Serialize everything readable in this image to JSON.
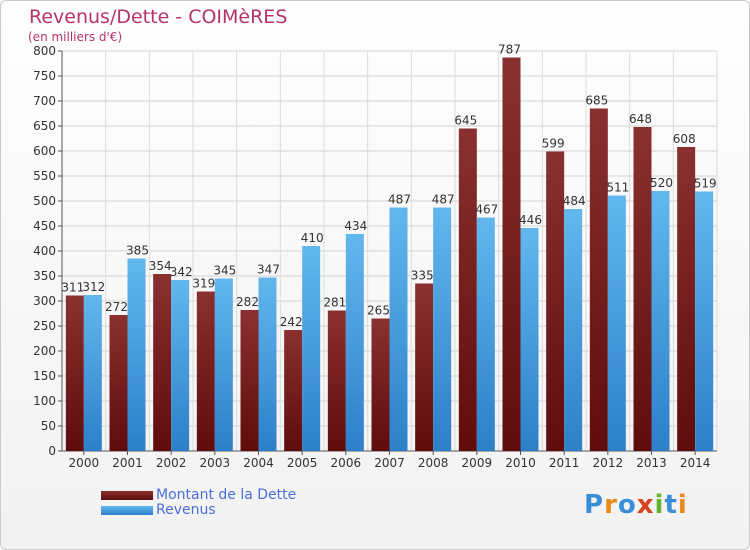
{
  "page": {
    "title": "Revenus/Dette - COIMèRES",
    "subtitle": "(en milliers d'€)",
    "logo": "Proxiti"
  },
  "colors": {
    "dette_dark": "#5e0c0c",
    "dette_light": "#8a3030",
    "revenus_dark": "#2d7fc8",
    "revenus_light": "#62b7ee",
    "title": "#b5336a",
    "grid": "#d0d0d0"
  },
  "chart_data": {
    "type": "bar",
    "categories": [
      "2000",
      "2001",
      "2002",
      "2003",
      "2004",
      "2005",
      "2006",
      "2007",
      "2008",
      "2009",
      "2010",
      "2011",
      "2012",
      "2013",
      "2014"
    ],
    "series": [
      {
        "name": "Montant de la Dette",
        "values": [
          311,
          272,
          354,
          319,
          282,
          242,
          281,
          265,
          335,
          645,
          787,
          599,
          685,
          648,
          608
        ]
      },
      {
        "name": "Revenus",
        "values": [
          312,
          385,
          342,
          345,
          347,
          410,
          434,
          487,
          487,
          467,
          446,
          484,
          511,
          520,
          519
        ]
      }
    ],
    "ylim": [
      0,
      800
    ],
    "yticks": [
      0,
      50,
      100,
      150,
      200,
      250,
      300,
      350,
      400,
      450,
      500,
      550,
      600,
      650,
      700,
      750,
      800
    ],
    "grid": true,
    "legend": "bottom-left"
  }
}
